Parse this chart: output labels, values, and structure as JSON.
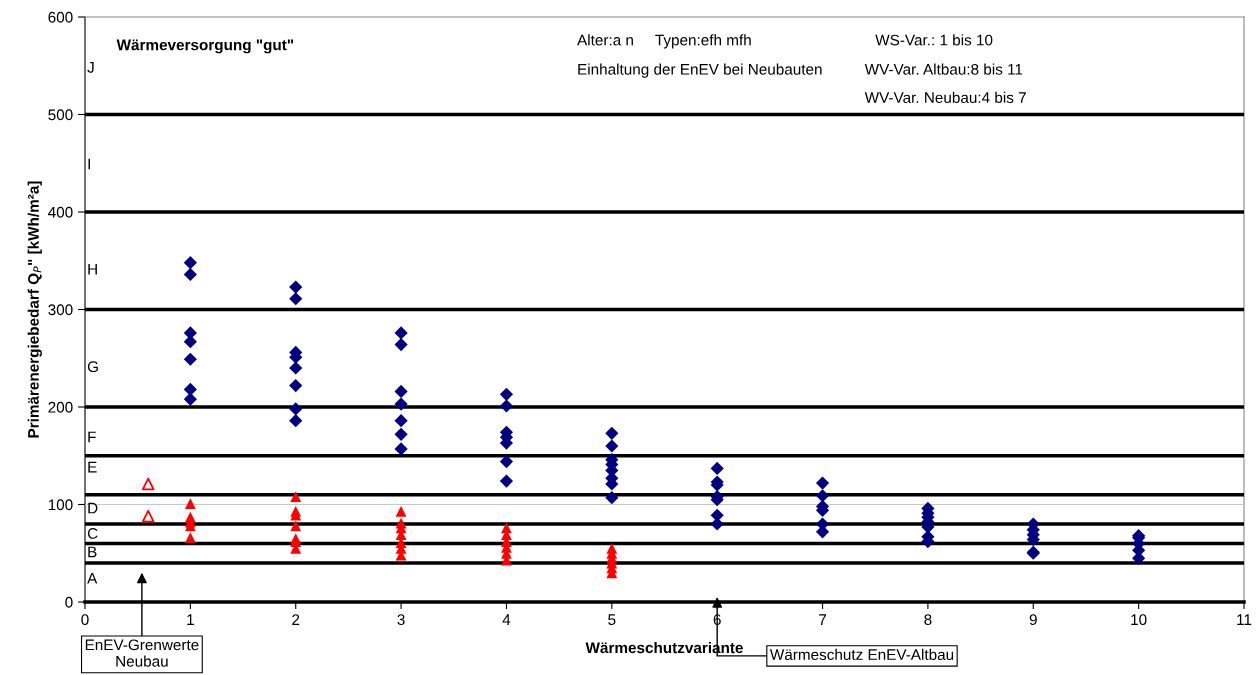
{
  "chart_data": {
    "type": "scatter",
    "title": "Wärmeversorgung \"gut\"",
    "xlabel": "Wärmeschutzvariante",
    "ylabel": "Primärenergiebedarf Q$_{P}$\" [kWh/m²a]",
    "xlim": [
      0,
      11
    ],
    "xticks": [
      0,
      1,
      2,
      3,
      4,
      5,
      6,
      7,
      8,
      9,
      10,
      11
    ],
    "ylim": [
      0,
      600
    ],
    "yticks": [
      0,
      100,
      200,
      300,
      400,
      500,
      600
    ],
    "series": [
      {
        "color": "#000080",
        "marker": "diamond",
        "x": [
          1,
          1,
          1,
          1,
          1,
          1,
          1,
          2,
          2,
          2,
          2,
          2,
          2,
          2,
          2,
          3,
          3,
          3,
          3,
          3,
          3,
          3,
          4,
          4,
          4,
          4,
          4,
          4,
          4,
          5,
          5,
          5,
          5,
          5,
          5,
          5,
          5,
          6,
          6,
          6,
          6,
          6,
          6,
          6,
          7,
          7,
          7,
          7,
          7,
          7,
          8,
          8,
          8,
          8,
          8,
          8,
          8,
          9,
          9,
          9,
          9,
          9,
          9,
          10,
          10,
          10,
          10,
          10
        ],
        "values": [
          348,
          336,
          276,
          267,
          249,
          218,
          208,
          323,
          311,
          256,
          251,
          240,
          222,
          198,
          186,
          276,
          264,
          216,
          203,
          186,
          172,
          157,
          213,
          201,
          174,
          169,
          163,
          144,
          124,
          173,
          160,
          146,
          141,
          135,
          127,
          121,
          107,
          137,
          123,
          120,
          108,
          105,
          89,
          80,
          122,
          109,
          98,
          94,
          80,
          72,
          96,
          91,
          87,
          82,
          77,
          67,
          62,
          80,
          74,
          69,
          64,
          51,
          50,
          68,
          66,
          60,
          53,
          45
        ]
      },
      {
        "color": "#ff0000",
        "marker": "triangle",
        "x": [
          1,
          1,
          1,
          1,
          1,
          2,
          2,
          2,
          2,
          2,
          2,
          2,
          3,
          3,
          3,
          3,
          3,
          3,
          3,
          4,
          4,
          4,
          4,
          4,
          4,
          5,
          5,
          5,
          5,
          5,
          5
        ],
        "values": [
          101,
          87,
          82,
          78,
          66,
          108,
          93,
          89,
          78,
          65,
          62,
          55,
          93,
          81,
          76,
          69,
          61,
          55,
          48,
          76,
          69,
          62,
          56,
          50,
          43,
          55,
          50,
          45,
          40,
          35,
          30
        ]
      },
      {
        "color": "#ff0000",
        "marker": "triangle-open",
        "x": [
          0.6,
          0.6
        ],
        "values": [
          121,
          88
        ]
      }
    ],
    "ref_lines": [
      {
        "axis": "y",
        "value": 40,
        "color": "#000000"
      },
      {
        "axis": "y",
        "value": 60,
        "color": "#000000"
      },
      {
        "axis": "y",
        "value": 80,
        "color": "#000000"
      },
      {
        "axis": "y",
        "value": 100,
        "color": "#c8c8c8"
      },
      {
        "axis": "y",
        "value": 110,
        "color": "#000000"
      },
      {
        "axis": "y",
        "value": 150,
        "color": "#000000"
      },
      {
        "axis": "y",
        "value": 200,
        "color": "#000000"
      },
      {
        "axis": "y",
        "value": 300,
        "color": "#000000"
      },
      {
        "axis": "y",
        "value": 400,
        "color": "#000000"
      },
      {
        "axis": "y",
        "value": 500,
        "color": "#000000"
      }
    ],
    "annotations": [
      "Alter:a n     Typen:efh mfh",
      "Einhaltung der EnEV bei Neubauten",
      "WS-Var.: 1 bis 10",
      "WV-Var. Altbau:8 bis 11",
      "WV-Var. Neubau:4 bis 7",
      "A",
      "B",
      "C",
      "D",
      "E",
      "F",
      "G",
      "H",
      "I",
      "J",
      "EnEV-Grenwerte\nNeubau",
      "Wärmeschutz EnEV-Altbau"
    ]
  }
}
